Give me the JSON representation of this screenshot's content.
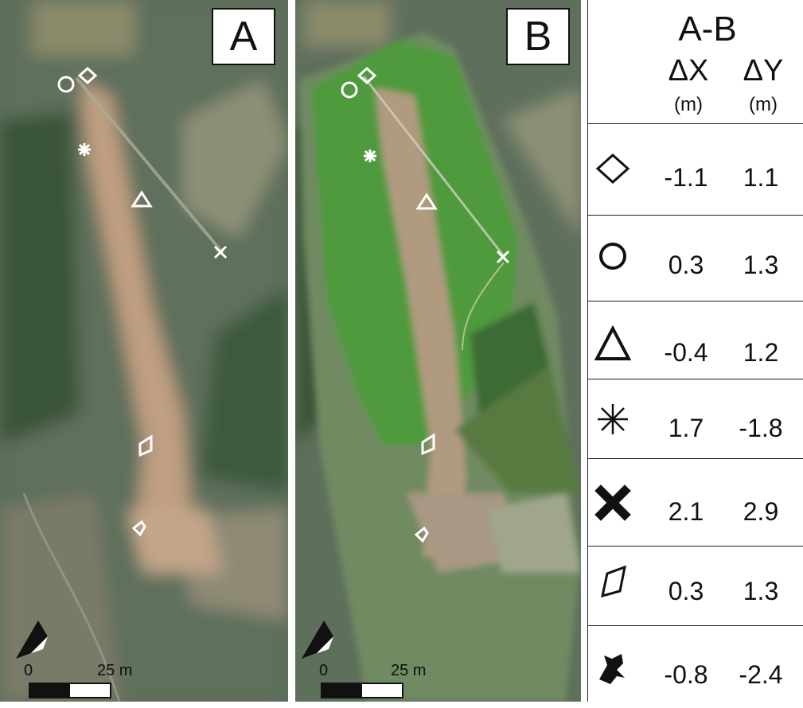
{
  "panels": [
    {
      "letter": "A",
      "scale_zero": "0",
      "scale_label": "25 m"
    },
    {
      "letter": "B",
      "scale_zero": "0",
      "scale_label": "25 m"
    }
  ],
  "table": {
    "title": "A-B",
    "col_dx": "ΔX",
    "col_dy": "ΔY",
    "unit_dx": "(m)",
    "unit_dy": "(m)",
    "rows": [
      {
        "symbol": "diamond-icon",
        "dx": "-1.1",
        "dy": "1.1"
      },
      {
        "symbol": "circle-icon",
        "dx": "0.3",
        "dy": "1.3"
      },
      {
        "symbol": "triangle-icon",
        "dx": "-0.4",
        "dy": "1.2"
      },
      {
        "symbol": "asterisk-icon",
        "dx": "1.7",
        "dy": "-1.8"
      },
      {
        "symbol": "cross-icon",
        "dx": "2.1",
        "dy": "2.9"
      },
      {
        "symbol": "parallelogram-icon",
        "dx": "0.3",
        "dy": "1.3"
      },
      {
        "symbol": "bell-icon",
        "dx": "-0.8",
        "dy": "-2.4"
      }
    ]
  },
  "colors": {
    "imagery_dark": "#3e5440",
    "imagery_light": "#7a8570",
    "scar": "#c4a688",
    "grass_b": "#4e9a3a"
  }
}
